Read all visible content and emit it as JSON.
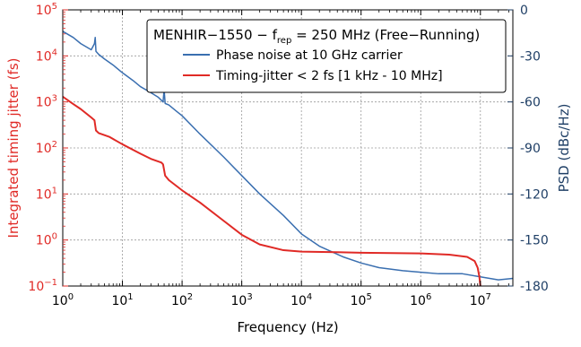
{
  "chart_data": {
    "type": "line",
    "title": "",
    "legend": {
      "placement": "top-right",
      "title_main": "MENHIR−1550 − f",
      "title_sub": "rep",
      "title_rest": " = 250 MHz (Free−Running)",
      "entries": [
        "Phase noise at 10 GHz carrier",
        "Timing-jitter < 2 fs [1 kHz - 10 MHz]"
      ]
    },
    "xlabel": "Frequency (Hz)",
    "ylabel_left": "Integrated timing jitter (fs)",
    "ylabel_right": "PSD (dBc/Hz)",
    "x_scale": "log",
    "xlim": [
      1,
      35000000
    ],
    "y_left_scale": "log",
    "y_left_lim": [
      0.1,
      100000
    ],
    "y_right_lim": [
      -180,
      0
    ],
    "grid": true,
    "x_ticks": [
      {
        "base": "10",
        "exp": "0",
        "value": 1
      },
      {
        "base": "10",
        "exp": "1",
        "value": 10
      },
      {
        "base": "10",
        "exp": "2",
        "value": 100
      },
      {
        "base": "10",
        "exp": "3",
        "value": 1000
      },
      {
        "base": "10",
        "exp": "4",
        "value": 10000
      },
      {
        "base": "10",
        "exp": "5",
        "value": 100000
      },
      {
        "base": "10",
        "exp": "6",
        "value": 1000000
      },
      {
        "base": "10",
        "exp": "7",
        "value": 10000000
      }
    ],
    "y_left_ticks": [
      {
        "base": "10",
        "exp": "−1",
        "value": 0.1
      },
      {
        "base": "10",
        "exp": "0",
        "value": 1
      },
      {
        "base": "10",
        "exp": "1",
        "value": 10
      },
      {
        "base": "10",
        "exp": "2",
        "value": 100
      },
      {
        "base": "10",
        "exp": "3",
        "value": 1000
      },
      {
        "base": "10",
        "exp": "4",
        "value": 10000
      },
      {
        "base": "10",
        "exp": "5",
        "value": 100000
      }
    ],
    "y_right_ticks": [
      "0",
      "-30",
      "-60",
      "-90",
      "-120",
      "-150",
      "-180"
    ],
    "series": [
      {
        "name": "Phase noise at 10 GHz carrier",
        "axis": "right",
        "color": "#3a6fb0",
        "x": [
          1,
          1.5,
          2,
          3,
          3.4,
          3.5,
          3.6,
          4,
          5,
          7,
          10,
          15,
          20,
          30,
          40,
          48,
          50,
          52,
          60,
          80,
          100,
          200,
          500,
          1000,
          2000,
          5000,
          10000,
          20000,
          50000,
          100000,
          200000,
          500000,
          1000000,
          2000000,
          5000000,
          10000000,
          20000000,
          35000000
        ],
        "y": [
          -14,
          -18,
          -22,
          -26,
          -22,
          -18,
          -27,
          -29,
          -32,
          -36,
          -41,
          -46,
          -50,
          -54,
          -57,
          -60,
          -52,
          -61,
          -62,
          -66,
          -69,
          -81,
          -96,
          -108,
          -120,
          -134,
          -146,
          -154,
          -161,
          -165,
          -168,
          -170,
          -171,
          -172,
          -172,
          -174,
          -176,
          -175
        ]
      },
      {
        "name": "Timing-jitter < 2 fs [1 kHz - 10 MHz]",
        "axis": "left",
        "color": "#e02a26",
        "x": [
          1,
          1.5,
          2,
          3,
          3.4,
          3.6,
          4,
          6,
          10,
          20,
          30,
          45,
          48,
          52,
          60,
          100,
          200,
          500,
          1000,
          2000,
          5000,
          10000,
          100000,
          1000000,
          3000000,
          6000000,
          8000000,
          9000000,
          9600000,
          10000000
        ],
        "y": [
          1300,
          900,
          700,
          460,
          400,
          240,
          210,
          175,
          120,
          75,
          58,
          48,
          44,
          25,
          20,
          12,
          6.5,
          2.6,
          1.3,
          0.8,
          0.6,
          0.56,
          0.53,
          0.51,
          0.48,
          0.43,
          0.35,
          0.25,
          0.16,
          0.1
        ]
      }
    ]
  }
}
